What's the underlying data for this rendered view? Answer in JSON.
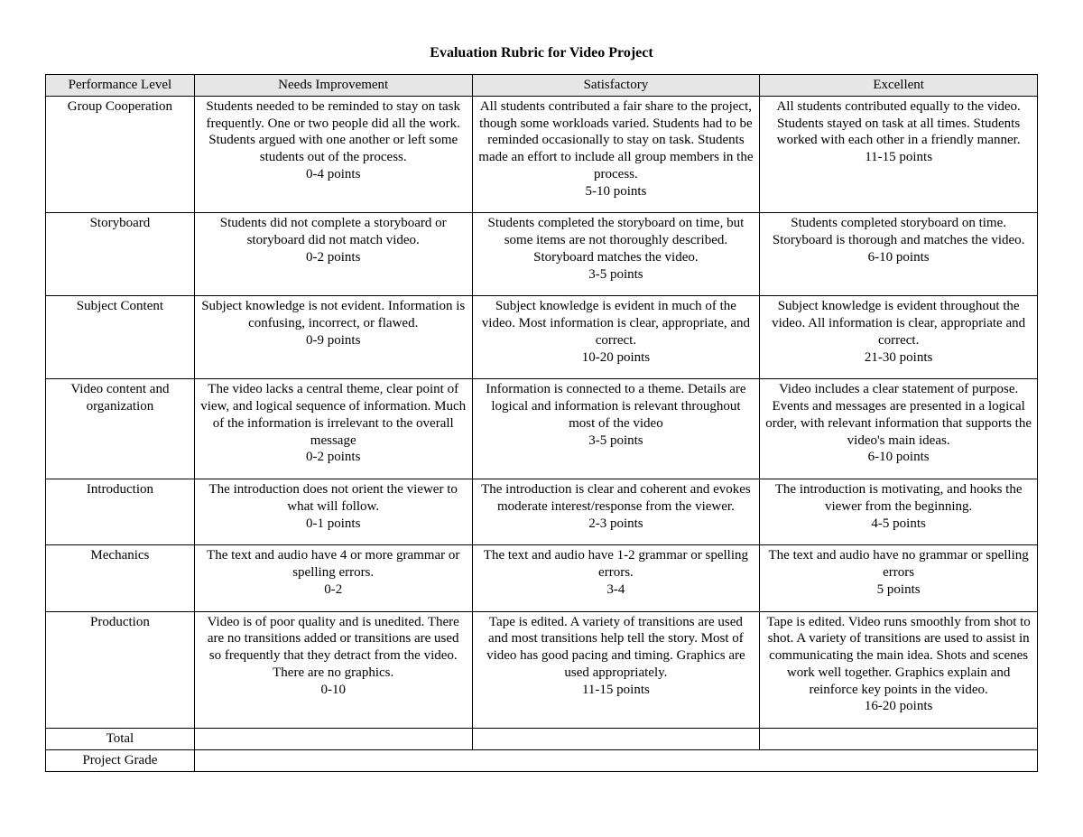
{
  "title": "Evaluation Rubric for Video Project",
  "headers": {
    "c0": "Performance Level",
    "c1": "Needs Improvement",
    "c2": "Satisfactory",
    "c3": "Excellent"
  },
  "rows": [
    {
      "label": "Group Cooperation",
      "needs": "Students needed to be reminded to stay on task frequently.  One or two people did all the work. Students argued with one another or left some students out of the process.",
      "needs_pts": "0-4 points",
      "sat": "All students contributed a fair share to the project, though some workloads varied.  Students had to be reminded occasionally to stay on task.  Students made an effort to include all group members in the process.",
      "sat_pts": "5-10 points",
      "exc": "All students contributed equally to the video.  Students stayed on task at all times.  Students worked with each other in a friendly manner.",
      "exc_pts": "11-15 points"
    },
    {
      "label": "Storyboard",
      "needs": "Students did not complete a storyboard or storyboard did not match video.",
      "needs_pts": "0-2 points",
      "sat": "Students completed the storyboard on time, but some items are not thoroughly described.  Storyboard matches the video.",
      "sat_pts": "3-5 points",
      "exc": "Students completed storyboard on time.  Storyboard is thorough and matches the video.",
      "exc_pts": "6-10 points"
    },
    {
      "label": "Subject Content",
      "needs": "Subject knowledge is not evident.  Information is confusing, incorrect, or flawed.",
      "needs_pts": "0-9 points",
      "sat": "Subject knowledge is evident in much of the video.  Most information is clear, appropriate, and correct.",
      "sat_pts": "10-20 points",
      "exc": "Subject knowledge is evident throughout the video.   All information is clear, appropriate and correct.",
      "exc_pts": "21-30 points"
    },
    {
      "label": "Video content and organization",
      "needs": "The video lacks a central theme, clear point of view, and logical sequence of information.  Much of the information is irrelevant to the overall message",
      "needs_pts": "0-2 points",
      "sat": "Information is connected to a theme.  Details are logical and information is relevant throughout most of the video",
      "sat_pts": "3-5 points",
      "exc": "Video includes a clear statement of purpose.  Events and messages are presented in a logical order, with relevant information that supports the video's main ideas.",
      "exc_pts": "6-10 points"
    },
    {
      "label": "Introduction",
      "needs": "The introduction does not orient the viewer to what will follow.",
      "needs_pts": "0-1 points",
      "sat": "The introduction is clear and coherent and evokes moderate interest/response from the viewer.",
      "sat_pts": "2-3 points",
      "exc": "The introduction is motivating, and hooks the viewer from the beginning.",
      "exc_pts": "4-5 points"
    },
    {
      "label": "Mechanics",
      "needs": "The text and audio have 4 or more grammar or spelling errors.",
      "needs_pts": "0-2",
      "sat": "The text and audio have 1-2 grammar or spelling errors.",
      "sat_pts": "3-4",
      "exc": "The text and audio have no grammar or spelling errors",
      "exc_pts": "5 points"
    },
    {
      "label": "Production",
      "needs": "Video is of poor quality and is unedited.  There are no transitions added or transitions are used so frequently that they detract from the video.  There are no graphics.",
      "needs_pts": "0-10",
      "sat": "Tape is edited.  A variety of transitions are used and most transitions help tell the story.  Most of video has good pacing and timing. Graphics are used appropriately.",
      "sat_pts": "11-15 points",
      "exc": "Tape is edited.  Video runs smoothly from shot to shot.  A variety of transitions are used to assist in communicating the main idea.  Shots and scenes work well together.  Graphics explain and reinforce key points in the video.",
      "exc_pts": "16-20 points"
    }
  ],
  "total_label": "Total",
  "grade_label": "Project Grade",
  "style": {
    "type": "table",
    "columns": [
      "Performance Level",
      "Needs Improvement",
      "Satisfactory",
      "Excellent"
    ],
    "column_widths_pct": [
      15,
      28,
      29,
      28
    ],
    "header_bg": "#e6e6e6",
    "border_color": "#000000",
    "background_color": "#ffffff",
    "text_color": "#000000",
    "font_family": "Times New Roman",
    "body_fontsize_pt": 12,
    "title_fontsize_pt": 12,
    "title_weight": "bold",
    "cell_align": "center",
    "cell_valign": "top",
    "line_height": 1.25
  }
}
